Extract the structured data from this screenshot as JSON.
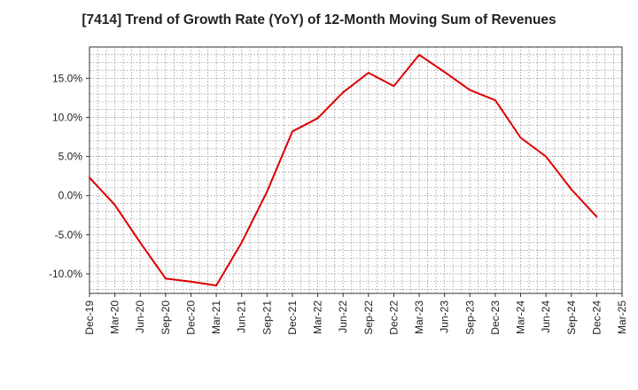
{
  "chart_data": {
    "type": "line",
    "title": "[7414]  Trend of Growth Rate (YoY) of 12-Month Moving Sum of Revenues",
    "xlabel": "",
    "ylabel": "",
    "x_tick_labels": [
      "Dec-19",
      "Mar-20",
      "Jun-20",
      "Sep-20",
      "Dec-20",
      "Mar-21",
      "Jun-21",
      "Sep-21",
      "Dec-21",
      "Mar-22",
      "Jun-22",
      "Sep-22",
      "Dec-22",
      "Mar-23",
      "Jun-23",
      "Sep-23",
      "Dec-23",
      "Mar-24",
      "Jun-24",
      "Sep-24",
      "Dec-24",
      "Mar-25"
    ],
    "y_tick_labels": [
      "15.0%",
      "10.0%",
      "5.0%",
      "0.0%",
      "-5.0%",
      "-10.0%"
    ],
    "y_ticks": [
      15,
      10,
      5,
      0,
      -5,
      -10
    ],
    "ylim": [
      -12.5,
      19
    ],
    "grid": true,
    "line_color": "#dd0000",
    "series": [
      {
        "name": "",
        "x": [
          "Dec-19",
          "Mar-20",
          "Jun-20",
          "Sep-20",
          "Dec-20",
          "Mar-21",
          "Jun-21",
          "Sep-21",
          "Dec-21",
          "Mar-22",
          "Jun-22",
          "Sep-22",
          "Dec-22",
          "Mar-23",
          "Jun-23",
          "Sep-23",
          "Dec-23",
          "Mar-24",
          "Jun-24",
          "Sep-24",
          "Dec-24"
        ],
        "values": [
          2.3,
          -1.2,
          -6.0,
          -10.6,
          -11.0,
          -11.5,
          -6.0,
          0.5,
          8.2,
          9.9,
          13.2,
          15.7,
          14.0,
          18.0,
          15.8,
          13.5,
          12.2,
          7.4,
          5.0,
          0.8,
          -2.7
        ]
      }
    ]
  }
}
